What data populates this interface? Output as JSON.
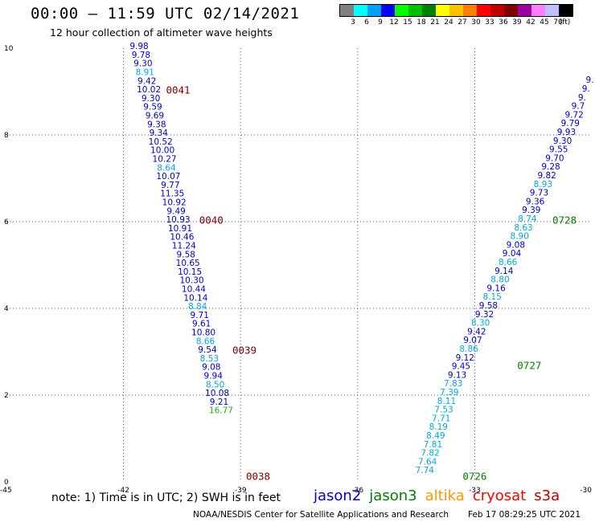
{
  "header": {
    "title": "00:00 – 11:59 UTC 02/14/2021",
    "subtitle": "12 hour collection of altimeter wave heights"
  },
  "colorbar": {
    "swatches": [
      "#808080",
      "#00ffff",
      "#00a0ff",
      "#0000ff",
      "#00ff00",
      "#00c000",
      "#008000",
      "#ffff00",
      "#ffc000",
      "#ff8000",
      "#ff0000",
      "#c00000",
      "#800000",
      "#a000a0",
      "#ff80ff",
      "#c0c0ff",
      "#000000"
    ],
    "labels": [
      "3",
      "6",
      "9",
      "12",
      "15",
      "18",
      "21",
      "24",
      "27",
      "30",
      "33",
      "36",
      "39",
      "42",
      "45",
      "70",
      "(ft)"
    ]
  },
  "footer": {
    "note": "note: 1) Time is in UTC; 2) SWH is in feet",
    "credit": "NOAA/NESDIS Center for Satellite Applications and Research",
    "stamp": "Feb 17 08:29:25 UTC 2021"
  },
  "legend": [
    {
      "name": "jason2",
      "color": "#0000d0"
    },
    {
      "name": "jason3",
      "color": "#008000"
    },
    {
      "name": "altika",
      "color": "#ff9900"
    },
    {
      "name": "cryosat",
      "color": "#ff0000"
    },
    {
      "name": "s3a",
      "color": "#c00000"
    }
  ],
  "chart_data": {
    "type": "scatter",
    "title": "00:00 – 11:59 UTC 02/14/2021",
    "xlabel": "",
    "ylabel": "",
    "xlim": [
      -45,
      -30
    ],
    "ylim": [
      0,
      10
    ],
    "xticks": [
      -45,
      -42,
      -39,
      -36,
      -33,
      -30
    ],
    "yticks": [
      0,
      2,
      4,
      6,
      8,
      10
    ],
    "grid": true,
    "tracks": [
      {
        "points": [
          {
            "x": -41.6,
            "y": 9.98,
            "v": "9.98",
            "c": "#0000c8"
          },
          {
            "x": -41.55,
            "y": 9.78,
            "v": "9.78",
            "c": "#0000c8"
          },
          {
            "x": -41.5,
            "y": 9.58,
            "v": "9.30",
            "c": "#0000c8"
          },
          {
            "x": -41.45,
            "y": 9.38,
            "v": "8.91",
            "c": "#00a8e0"
          },
          {
            "x": -41.4,
            "y": 9.18,
            "v": "9.42",
            "c": "#0000c8"
          },
          {
            "x": -41.35,
            "y": 8.98,
            "v": "10.02",
            "c": "#0000c8"
          },
          {
            "x": -41.3,
            "y": 8.78,
            "v": "9.30",
            "c": "#0000c8"
          },
          {
            "x": -41.25,
            "y": 8.58,
            "v": "9.59",
            "c": "#0000c8"
          },
          {
            "x": -41.2,
            "y": 8.38,
            "v": "9.69",
            "c": "#0000c8"
          },
          {
            "x": -41.15,
            "y": 8.18,
            "v": "9.38",
            "c": "#0000c8"
          },
          {
            "x": -41.1,
            "y": 7.98,
            "v": "9.34",
            "c": "#0000c8"
          },
          {
            "x": -41.05,
            "y": 7.78,
            "v": "10.52",
            "c": "#0000c8"
          },
          {
            "x": -41.0,
            "y": 7.58,
            "v": "10.00",
            "c": "#0000c8"
          },
          {
            "x": -40.95,
            "y": 7.38,
            "v": "10.27",
            "c": "#0000c8"
          },
          {
            "x": -40.9,
            "y": 7.18,
            "v": "8.64",
            "c": "#00a8e0"
          },
          {
            "x": -40.85,
            "y": 6.98,
            "v": "10.07",
            "c": "#0000c8"
          },
          {
            "x": -40.8,
            "y": 6.78,
            "v": "9.77",
            "c": "#0000c8"
          },
          {
            "x": -40.75,
            "y": 6.58,
            "v": "11.35",
            "c": "#0000c8"
          },
          {
            "x": -40.7,
            "y": 6.38,
            "v": "10.92",
            "c": "#0000c8"
          },
          {
            "x": -40.65,
            "y": 6.18,
            "v": "9.49",
            "c": "#0000c8"
          },
          {
            "x": -40.6,
            "y": 5.98,
            "v": "10.93",
            "c": "#0000c8"
          },
          {
            "x": -40.55,
            "y": 5.78,
            "v": "10.91",
            "c": "#0000c8"
          },
          {
            "x": -40.5,
            "y": 5.58,
            "v": "10.46",
            "c": "#0000c8"
          },
          {
            "x": -40.45,
            "y": 5.38,
            "v": "11.24",
            "c": "#0000c8"
          },
          {
            "x": -40.4,
            "y": 5.18,
            "v": "9.58",
            "c": "#0000c8"
          },
          {
            "x": -40.35,
            "y": 4.98,
            "v": "10.65",
            "c": "#0000c8"
          },
          {
            "x": -40.3,
            "y": 4.78,
            "v": "10.15",
            "c": "#0000c8"
          },
          {
            "x": -40.25,
            "y": 4.58,
            "v": "10.30",
            "c": "#0000c8"
          },
          {
            "x": -40.2,
            "y": 4.38,
            "v": "10.44",
            "c": "#0000c8"
          },
          {
            "x": -40.15,
            "y": 4.18,
            "v": "10.14",
            "c": "#0000c8"
          },
          {
            "x": -40.1,
            "y": 3.98,
            "v": "8.84",
            "c": "#00a8e0"
          },
          {
            "x": -40.05,
            "y": 3.78,
            "v": "9.71",
            "c": "#0000c8"
          },
          {
            "x": -40.0,
            "y": 3.58,
            "v": "9.61",
            "c": "#0000c8"
          },
          {
            "x": -39.95,
            "y": 3.38,
            "v": "10.80",
            "c": "#0000c8"
          },
          {
            "x": -39.9,
            "y": 3.18,
            "v": "8.66",
            "c": "#00a8e0"
          },
          {
            "x": -39.85,
            "y": 2.98,
            "v": "9.54",
            "c": "#0000c8"
          },
          {
            "x": -39.8,
            "y": 2.78,
            "v": "8.53",
            "c": "#00a8e0"
          },
          {
            "x": -39.75,
            "y": 2.58,
            "v": "9.08",
            "c": "#0000c8"
          },
          {
            "x": -39.7,
            "y": 2.38,
            "v": "9.94",
            "c": "#0000c8"
          },
          {
            "x": -39.65,
            "y": 2.18,
            "v": "8.50",
            "c": "#00a8e0"
          },
          {
            "x": -39.6,
            "y": 1.98,
            "v": "10.08",
            "c": "#0000c8"
          },
          {
            "x": -39.55,
            "y": 1.78,
            "v": "9.21",
            "c": "#0000c8"
          },
          {
            "x": -39.5,
            "y": 1.58,
            "v": "16.77",
            "c": "#20b020"
          }
        ],
        "times": [
          {
            "x": -40.6,
            "y": 8.95,
            "label": "0041",
            "c": "#800000"
          },
          {
            "x": -39.75,
            "y": 5.95,
            "label": "0040",
            "c": "#800000"
          },
          {
            "x": -38.9,
            "y": 2.95,
            "label": "0039",
            "c": "#800000"
          },
          {
            "x": -38.55,
            "y": 0.05,
            "label": "0038",
            "c": "#800000"
          }
        ]
      },
      {
        "points": [
          {
            "x": -30.05,
            "y": 9.2,
            "v": "9.",
            "c": "#0000c8"
          },
          {
            "x": -30.15,
            "y": 9.0,
            "v": "9.",
            "c": "#0000c8"
          },
          {
            "x": -30.25,
            "y": 8.8,
            "v": "9.",
            "c": "#0000c8"
          },
          {
            "x": -30.35,
            "y": 8.6,
            "v": "9.7",
            "c": "#0000c8"
          },
          {
            "x": -30.45,
            "y": 8.4,
            "v": "9.72",
            "c": "#0000c8"
          },
          {
            "x": -30.55,
            "y": 8.2,
            "v": "9.79",
            "c": "#0000c8"
          },
          {
            "x": -30.65,
            "y": 8.0,
            "v": "9.93",
            "c": "#0000c8"
          },
          {
            "x": -30.75,
            "y": 7.8,
            "v": "9.30",
            "c": "#0000c8"
          },
          {
            "x": -30.85,
            "y": 7.6,
            "v": "9.55",
            "c": "#0000c8"
          },
          {
            "x": -30.95,
            "y": 7.4,
            "v": "9.70",
            "c": "#0000c8"
          },
          {
            "x": -31.05,
            "y": 7.2,
            "v": "9.28",
            "c": "#0000c8"
          },
          {
            "x": -31.15,
            "y": 7.0,
            "v": "9.82",
            "c": "#0000c8"
          },
          {
            "x": -31.25,
            "y": 6.8,
            "v": "8.93",
            "c": "#00a8e0"
          },
          {
            "x": -31.35,
            "y": 6.6,
            "v": "9.73",
            "c": "#0000c8"
          },
          {
            "x": -31.45,
            "y": 6.4,
            "v": "9.36",
            "c": "#0000c8"
          },
          {
            "x": -31.55,
            "y": 6.2,
            "v": "9.39",
            "c": "#0000c8"
          },
          {
            "x": -31.65,
            "y": 6.0,
            "v": "8.74",
            "c": "#00a8e0"
          },
          {
            "x": -31.75,
            "y": 5.8,
            "v": "8.63",
            "c": "#00a8e0"
          },
          {
            "x": -31.85,
            "y": 5.6,
            "v": "8.90",
            "c": "#00a8e0"
          },
          {
            "x": -31.95,
            "y": 5.4,
            "v": "9.08",
            "c": "#0000c8"
          },
          {
            "x": -32.05,
            "y": 5.2,
            "v": "9.04",
            "c": "#0000c8"
          },
          {
            "x": -32.15,
            "y": 5.0,
            "v": "8.66",
            "c": "#00a8e0"
          },
          {
            "x": -32.25,
            "y": 4.8,
            "v": "9.14",
            "c": "#0000c8"
          },
          {
            "x": -32.35,
            "y": 4.6,
            "v": "8.80",
            "c": "#00a8e0"
          },
          {
            "x": -32.45,
            "y": 4.4,
            "v": "9.16",
            "c": "#0000c8"
          },
          {
            "x": -32.55,
            "y": 4.2,
            "v": "8.15",
            "c": "#00a8e0"
          },
          {
            "x": -32.65,
            "y": 4.0,
            "v": "9.58",
            "c": "#0000c8"
          },
          {
            "x": -32.75,
            "y": 3.8,
            "v": "9.32",
            "c": "#0000c8"
          },
          {
            "x": -32.85,
            "y": 3.6,
            "v": "8.30",
            "c": "#00a8e0"
          },
          {
            "x": -32.95,
            "y": 3.4,
            "v": "9.42",
            "c": "#0000c8"
          },
          {
            "x": -33.05,
            "y": 3.2,
            "v": "9.07",
            "c": "#0000c8"
          },
          {
            "x": -33.15,
            "y": 3.0,
            "v": "8.86",
            "c": "#00a8e0"
          },
          {
            "x": -33.25,
            "y": 2.8,
            "v": "9.12",
            "c": "#0000c8"
          },
          {
            "x": -33.35,
            "y": 2.6,
            "v": "9.45",
            "c": "#0000c8"
          },
          {
            "x": -33.45,
            "y": 2.4,
            "v": "9.13",
            "c": "#0000c8"
          },
          {
            "x": -33.55,
            "y": 2.2,
            "v": "7.83",
            "c": "#00a8e0"
          },
          {
            "x": -33.65,
            "y": 2.0,
            "v": "7.39",
            "c": "#00a8e0"
          },
          {
            "x": -33.72,
            "y": 1.8,
            "v": "8.11",
            "c": "#00a8e0"
          },
          {
            "x": -33.79,
            "y": 1.6,
            "v": "7.53",
            "c": "#00a8e0"
          },
          {
            "x": -33.86,
            "y": 1.4,
            "v": "7.71",
            "c": "#00a8e0"
          },
          {
            "x": -33.93,
            "y": 1.2,
            "v": "8.19",
            "c": "#00a8e0"
          },
          {
            "x": -34.0,
            "y": 1.0,
            "v": "8.49",
            "c": "#00a8e0"
          },
          {
            "x": -34.07,
            "y": 0.8,
            "v": "7.81",
            "c": "#00a8e0"
          },
          {
            "x": -34.14,
            "y": 0.6,
            "v": "7.82",
            "c": "#00a8e0"
          },
          {
            "x": -34.21,
            "y": 0.4,
            "v": "7.64",
            "c": "#00a8e0"
          },
          {
            "x": -34.28,
            "y": 0.2,
            "v": "7.74",
            "c": "#00a8e0"
          }
        ],
        "times": [
          {
            "x": -30.7,
            "y": 5.95,
            "label": "0728",
            "c": "#008000"
          },
          {
            "x": -31.6,
            "y": 2.6,
            "label": "0727",
            "c": "#008000"
          },
          {
            "x": -33.0,
            "y": 0.05,
            "label": "0726",
            "c": "#008000"
          }
        ]
      }
    ]
  }
}
